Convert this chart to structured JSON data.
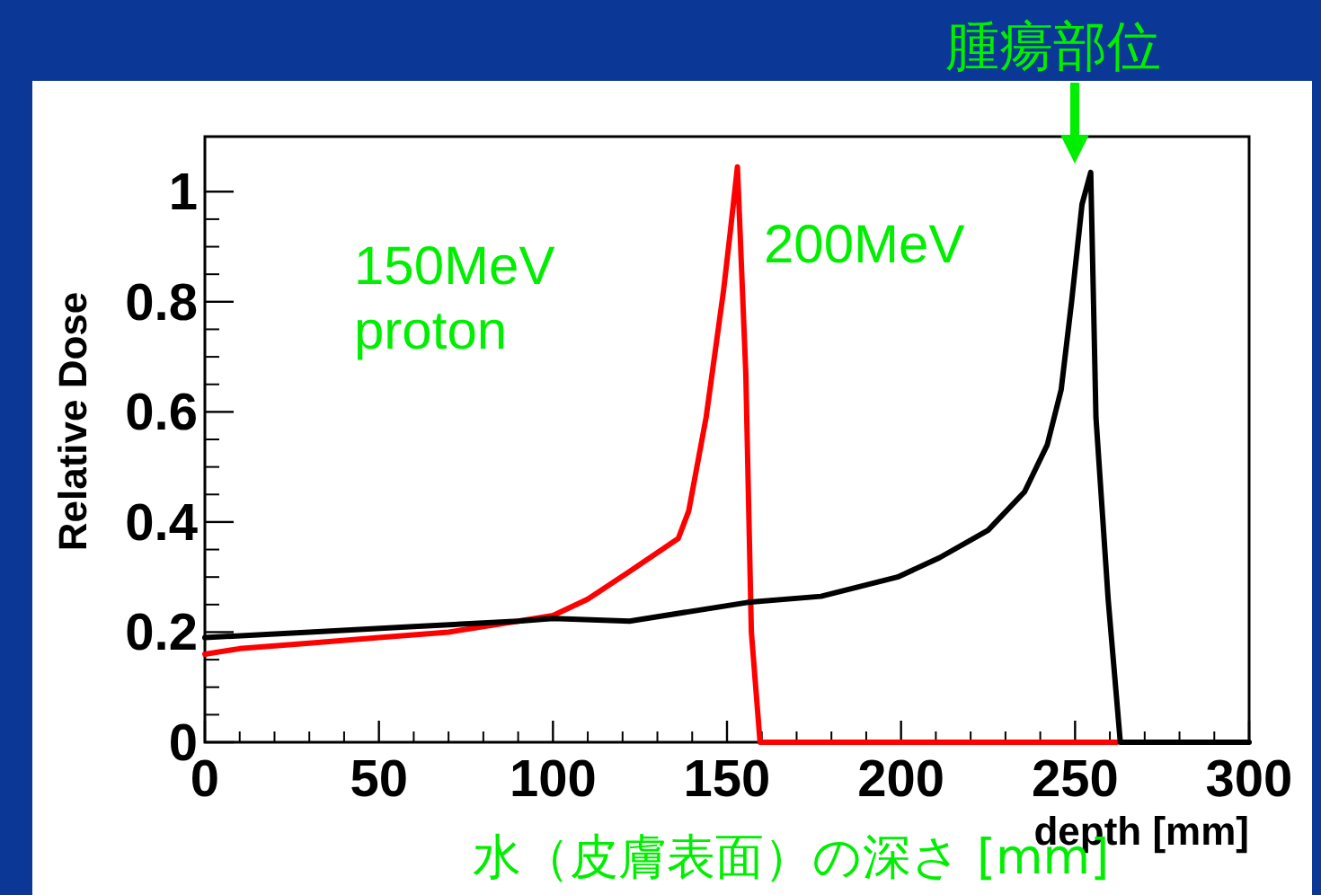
{
  "chart_data": {
    "type": "line",
    "xlabel": "depth [mm]",
    "ylabel": "Relative Dose",
    "xlim": [
      0,
      300
    ],
    "ylim": [
      0,
      1.1
    ],
    "xticks": [
      0,
      50,
      100,
      150,
      200,
      250,
      300
    ],
    "yticks": [
      0,
      0.2,
      0.4,
      0.6,
      0.8,
      1
    ],
    "annotations": [
      "腫瘍部位",
      "水（皮膚表面）の深さ [mm]",
      "150MeV proton",
      "200MeV"
    ],
    "series": [
      {
        "color": "#ff0000",
        "x": [
          0,
          10,
          30,
          50,
          70,
          90,
          100,
          110,
          122,
          136,
          139,
          144,
          149,
          151,
          153,
          155.4,
          157,
          159.5,
          262
        ],
        "values": [
          0.16,
          0.17,
          0.18,
          0.19,
          0.2,
          0.22,
          0.23,
          0.26,
          0.31,
          0.37,
          0.42,
          0.59,
          0.82,
          0.93,
          1.045,
          0.67,
          0.2,
          0,
          0
        ]
      },
      {
        "color": "#000000",
        "x": [
          0,
          30,
          60,
          90,
          100,
          122,
          156,
          177,
          199,
          211,
          225,
          235.5,
          242,
          246,
          249,
          252,
          254.5,
          256,
          259.5,
          263,
          300
        ],
        "values": [
          0.19,
          0.2,
          0.21,
          0.22,
          0.225,
          0.22,
          0.254,
          0.265,
          0.3,
          0.335,
          0.385,
          0.455,
          0.54,
          0.64,
          0.8,
          0.977,
          1.035,
          0.59,
          0.26,
          0,
          0
        ]
      }
    ]
  }
}
